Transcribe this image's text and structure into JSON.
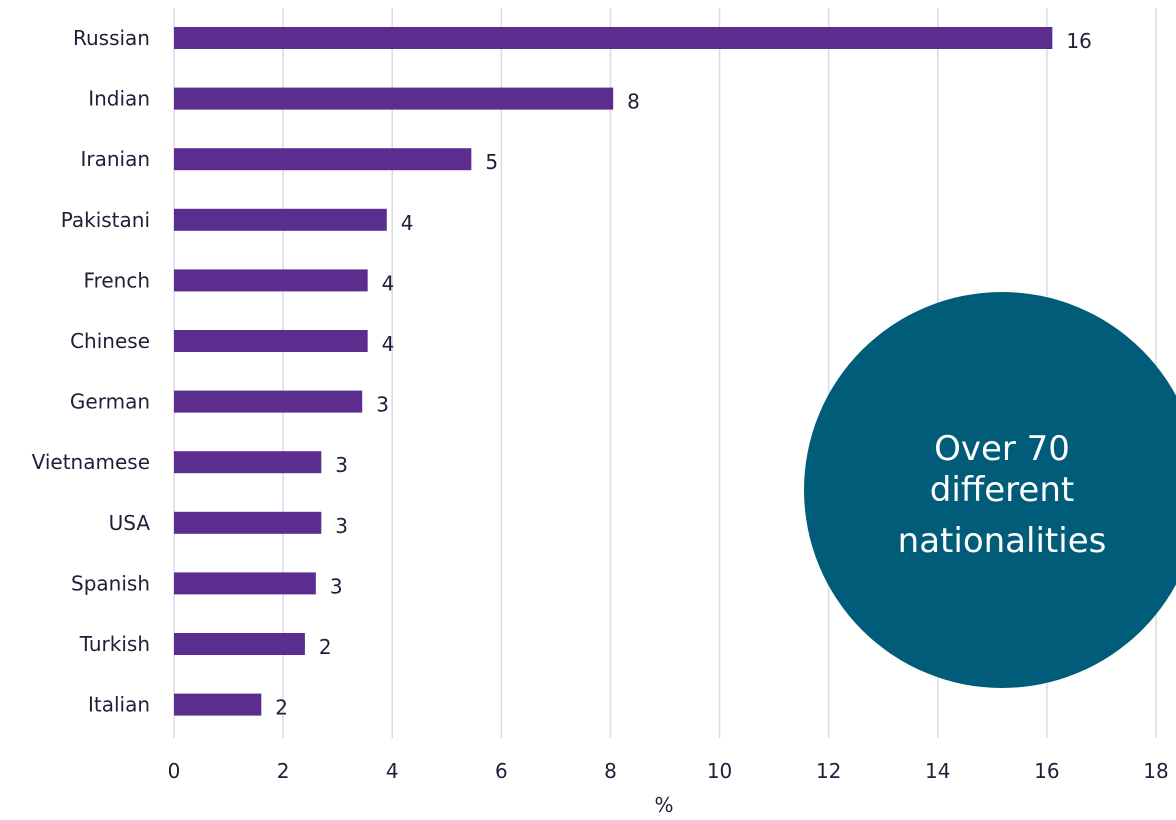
{
  "chart_data": {
    "type": "bar",
    "orientation": "horizontal",
    "categories": [
      "Russian",
      "Indian",
      "Iranian",
      "Pakistani",
      "French",
      "Chinese",
      "German",
      "Vietnamese",
      "USA",
      "Spanish",
      "Turkish",
      "Italian"
    ],
    "values": [
      16.1,
      8.05,
      5.45,
      3.9,
      3.55,
      3.55,
      3.45,
      2.7,
      2.7,
      2.6,
      2.4,
      1.6
    ],
    "data_labels": [
      "16",
      "8",
      "5",
      "4",
      "4",
      "4",
      "3",
      "3",
      "3",
      "3",
      "2",
      "2"
    ],
    "xlabel": "%",
    "xlim": [
      0,
      18
    ],
    "x_ticks": [
      0,
      2,
      4,
      6,
      8,
      10,
      12,
      14,
      16,
      18
    ],
    "grid": "vertical",
    "bar_color": "#5b2d8e",
    "grid_color": "#dcd8ea"
  },
  "callout": {
    "lines": [
      "Over 70",
      "different",
      "nationalities"
    ],
    "color": "#005c78"
  }
}
